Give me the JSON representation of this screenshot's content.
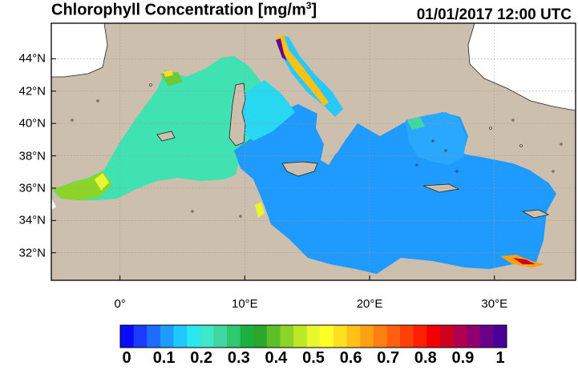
{
  "title": {
    "main": "Chlorophyll Concentration [mg/m",
    "sup": "3",
    "close": "]"
  },
  "timestamp": "01/01/2017 12:00 UTC",
  "map": {
    "region": "Mediterranean Sea",
    "lon_range": [
      -5.5,
      36.5
    ],
    "lat_range": [
      30.3,
      46.2
    ],
    "land_color": "#cdbfad",
    "lat_ticks": [
      {
        "value": 44,
        "label": "44°N"
      },
      {
        "value": 42,
        "label": "42°N"
      },
      {
        "value": 40,
        "label": "40°N"
      },
      {
        "value": 38,
        "label": "38°N"
      },
      {
        "value": 36,
        "label": "36°N"
      },
      {
        "value": 34,
        "label": "34°N"
      },
      {
        "value": 32,
        "label": "32°N"
      }
    ],
    "lon_ticks": [
      {
        "value": 0,
        "label": "0°"
      },
      {
        "value": 10,
        "label": "10°E"
      },
      {
        "value": 20,
        "label": "20°E"
      },
      {
        "value": 30,
        "label": "30°E"
      }
    ]
  },
  "colorbar": {
    "min": 0,
    "max": 1,
    "tick_labels": [
      "0",
      "0.1",
      "0.2",
      "0.3",
      "0.4",
      "0.5",
      "0.6",
      "0.7",
      "0.8",
      "0.9",
      "1"
    ],
    "colors": [
      "#0a0aff",
      "#1a3cff",
      "#1f6bff",
      "#1f9aff",
      "#20c8ff",
      "#2ae8f0",
      "#3fe8c8",
      "#3fd8a0",
      "#2ec870",
      "#1cb040",
      "#2aa82a",
      "#5cc028",
      "#8cd428",
      "#bce828",
      "#e8f830",
      "#ffff28",
      "#ffe020",
      "#ffc018",
      "#ffa014",
      "#ff8010",
      "#ff600c",
      "#ff4008",
      "#ff2004",
      "#f00000",
      "#d00020",
      "#b00050",
      "#900070",
      "#6a0088",
      "#4a0098"
    ]
  }
}
